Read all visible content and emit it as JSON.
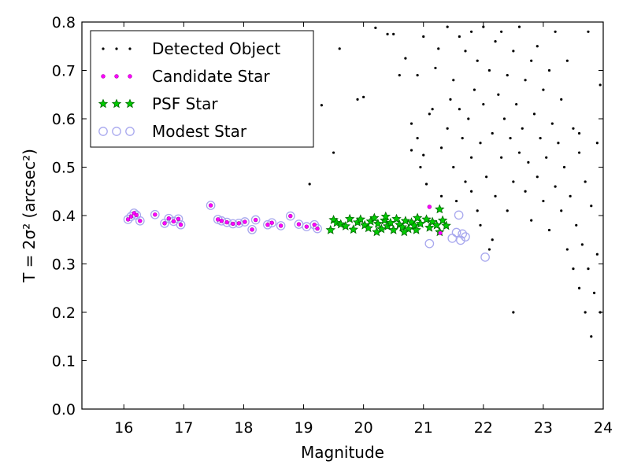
{
  "chart_data": {
    "type": "scatter",
    "xlabel": "Magnitude",
    "ylabel": "T = 2σ² (arcsec²)",
    "xlim": [
      15.3,
      24.0
    ],
    "ylim": [
      0.0,
      0.8
    ],
    "xticks": [
      "16",
      "17",
      "18",
      "19",
      "20",
      "21",
      "22",
      "23",
      "24"
    ],
    "yticks": [
      "0.0",
      "0.1",
      "0.2",
      "0.3",
      "0.4",
      "0.5",
      "0.6",
      "0.7",
      "0.8"
    ],
    "grid": false,
    "legend_position": "top-left",
    "legend": [
      {
        "label": "Detected Object",
        "marker": "dot",
        "color": "#000000"
      },
      {
        "label": "Candidate Star",
        "marker": "circle",
        "color": "#ff00ff"
      },
      {
        "label": "PSF Star",
        "marker": "star",
        "color": "#00aa00"
      },
      {
        "label": "Modest Star",
        "marker": "open-circle",
        "color": "#aaaaee"
      }
    ],
    "series": [
      {
        "name": "Modest Star",
        "points": [
          [
            16.07,
            0.392
          ],
          [
            16.12,
            0.398
          ],
          [
            16.17,
            0.405
          ],
          [
            16.21,
            0.401
          ],
          [
            16.27,
            0.389
          ],
          [
            16.52,
            0.402
          ],
          [
            16.68,
            0.384
          ],
          [
            16.75,
            0.394
          ],
          [
            16.83,
            0.388
          ],
          [
            16.91,
            0.393
          ],
          [
            16.95,
            0.381
          ],
          [
            17.45,
            0.421
          ],
          [
            17.57,
            0.392
          ],
          [
            17.63,
            0.389
          ],
          [
            17.72,
            0.386
          ],
          [
            17.82,
            0.383
          ],
          [
            17.92,
            0.384
          ],
          [
            18.02,
            0.387
          ],
          [
            18.14,
            0.371
          ],
          [
            18.2,
            0.391
          ],
          [
            18.4,
            0.381
          ],
          [
            18.47,
            0.385
          ],
          [
            18.62,
            0.379
          ],
          [
            18.78,
            0.399
          ],
          [
            18.92,
            0.382
          ],
          [
            19.05,
            0.377
          ],
          [
            19.18,
            0.381
          ],
          [
            19.23,
            0.373
          ],
          [
            21.48,
            0.353
          ],
          [
            21.55,
            0.365
          ],
          [
            21.62,
            0.349
          ],
          [
            21.65,
            0.362
          ],
          [
            21.7,
            0.356
          ],
          [
            21.1,
            0.342
          ],
          [
            22.03,
            0.314
          ],
          [
            21.59,
            0.401
          ]
        ]
      },
      {
        "name": "PSF Star",
        "points": [
          [
            19.45,
            0.37
          ],
          [
            19.5,
            0.391
          ],
          [
            19.55,
            0.385
          ],
          [
            19.62,
            0.382
          ],
          [
            19.7,
            0.378
          ],
          [
            19.77,
            0.393
          ],
          [
            19.83,
            0.371
          ],
          [
            19.9,
            0.386
          ],
          [
            19.95,
            0.392
          ],
          [
            20.02,
            0.38
          ],
          [
            20.08,
            0.374
          ],
          [
            20.12,
            0.388
          ],
          [
            20.18,
            0.395
          ],
          [
            20.24,
            0.383
          ],
          [
            20.3,
            0.372
          ],
          [
            20.35,
            0.39
          ],
          [
            20.4,
            0.378
          ],
          [
            20.45,
            0.385
          ],
          [
            20.5,
            0.37
          ],
          [
            20.55,
            0.393
          ],
          [
            20.6,
            0.381
          ],
          [
            20.65,
            0.376
          ],
          [
            20.7,
            0.389
          ],
          [
            20.75,
            0.372
          ],
          [
            20.8,
            0.386
          ],
          [
            20.85,
            0.379
          ],
          [
            20.9,
            0.395
          ],
          [
            20.95,
            0.383
          ],
          [
            21.05,
            0.392
          ],
          [
            21.1,
            0.375
          ],
          [
            21.15,
            0.387
          ],
          [
            21.22,
            0.38
          ],
          [
            21.27,
            0.366
          ],
          [
            21.32,
            0.39
          ],
          [
            21.38,
            0.379
          ],
          [
            21.27,
            0.413
          ],
          [
            20.22,
            0.366
          ],
          [
            20.68,
            0.366
          ],
          [
            20.37,
            0.398
          ],
          [
            20.88,
            0.37
          ]
        ]
      },
      {
        "name": "Candidate Star",
        "points": [
          [
            16.07,
            0.392
          ],
          [
            16.12,
            0.398
          ],
          [
            16.17,
            0.405
          ],
          [
            16.21,
            0.401
          ],
          [
            16.27,
            0.389
          ],
          [
            16.52,
            0.402
          ],
          [
            16.68,
            0.384
          ],
          [
            16.75,
            0.394
          ],
          [
            16.83,
            0.388
          ],
          [
            16.91,
            0.393
          ],
          [
            16.95,
            0.381
          ],
          [
            17.45,
            0.421
          ],
          [
            17.57,
            0.392
          ],
          [
            17.63,
            0.389
          ],
          [
            17.72,
            0.386
          ],
          [
            17.82,
            0.383
          ],
          [
            17.92,
            0.384
          ],
          [
            18.02,
            0.387
          ],
          [
            18.14,
            0.371
          ],
          [
            18.2,
            0.391
          ],
          [
            18.4,
            0.381
          ],
          [
            18.47,
            0.385
          ],
          [
            18.62,
            0.379
          ],
          [
            18.78,
            0.399
          ],
          [
            18.92,
            0.382
          ],
          [
            19.05,
            0.377
          ],
          [
            19.18,
            0.381
          ],
          [
            19.23,
            0.373
          ],
          [
            21.1,
            0.418
          ],
          [
            21.28,
            0.364
          ]
        ]
      },
      {
        "name": "Detected Object",
        "points": [
          [
            19.1,
            0.465
          ],
          [
            19.3,
            0.628
          ],
          [
            19.5,
            0.53
          ],
          [
            19.6,
            0.745
          ],
          [
            19.9,
            0.64
          ],
          [
            20.0,
            0.645
          ],
          [
            20.2,
            0.788
          ],
          [
            20.4,
            0.775
          ],
          [
            20.5,
            0.775
          ],
          [
            20.6,
            0.69
          ],
          [
            20.7,
            0.725
          ],
          [
            20.8,
            0.535
          ],
          [
            20.8,
            0.59
          ],
          [
            20.9,
            0.56
          ],
          [
            20.9,
            0.69
          ],
          [
            21.0,
            0.77
          ],
          [
            21.0,
            0.525
          ],
          [
            21.05,
            0.465
          ],
          [
            21.1,
            0.61
          ],
          [
            21.15,
            0.62
          ],
          [
            21.2,
            0.705
          ],
          [
            21.25,
            0.745
          ],
          [
            21.3,
            0.54
          ],
          [
            21.3,
            0.44
          ],
          [
            21.4,
            0.79
          ],
          [
            21.4,
            0.58
          ],
          [
            21.45,
            0.64
          ],
          [
            21.5,
            0.5
          ],
          [
            21.5,
            0.68
          ],
          [
            21.55,
            0.43
          ],
          [
            21.6,
            0.77
          ],
          [
            21.6,
            0.62
          ],
          [
            21.65,
            0.56
          ],
          [
            21.7,
            0.74
          ],
          [
            21.7,
            0.47
          ],
          [
            21.75,
            0.6
          ],
          [
            21.8,
            0.78
          ],
          [
            21.8,
            0.52
          ],
          [
            21.85,
            0.66
          ],
          [
            21.9,
            0.41
          ],
          [
            21.9,
            0.72
          ],
          [
            21.95,
            0.55
          ],
          [
            22.0,
            0.79
          ],
          [
            22.0,
            0.63
          ],
          [
            22.05,
            0.48
          ],
          [
            22.1,
            0.7
          ],
          [
            22.15,
            0.57
          ],
          [
            22.2,
            0.76
          ],
          [
            22.2,
            0.44
          ],
          [
            22.25,
            0.65
          ],
          [
            22.3,
            0.52
          ],
          [
            22.3,
            0.78
          ],
          [
            22.35,
            0.6
          ],
          [
            22.4,
            0.69
          ],
          [
            22.4,
            0.41
          ],
          [
            22.45,
            0.56
          ],
          [
            22.5,
            0.74
          ],
          [
            22.5,
            0.47
          ],
          [
            22.55,
            0.63
          ],
          [
            22.6,
            0.53
          ],
          [
            22.6,
            0.79
          ],
          [
            22.65,
            0.58
          ],
          [
            22.7,
            0.45
          ],
          [
            22.7,
            0.68
          ],
          [
            22.75,
            0.51
          ],
          [
            22.8,
            0.72
          ],
          [
            22.8,
            0.39
          ],
          [
            22.85,
            0.61
          ],
          [
            22.9,
            0.48
          ],
          [
            22.9,
            0.75
          ],
          [
            22.95,
            0.56
          ],
          [
            23.0,
            0.43
          ],
          [
            23.0,
            0.66
          ],
          [
            23.05,
            0.52
          ],
          [
            23.1,
            0.7
          ],
          [
            23.1,
            0.37
          ],
          [
            23.15,
            0.59
          ],
          [
            23.2,
            0.46
          ],
          [
            23.2,
            0.78
          ],
          [
            23.25,
            0.55
          ],
          [
            23.3,
            0.41
          ],
          [
            23.3,
            0.64
          ],
          [
            23.35,
            0.5
          ],
          [
            23.4,
            0.33
          ],
          [
            23.4,
            0.72
          ],
          [
            23.45,
            0.44
          ],
          [
            23.5,
            0.58
          ],
          [
            23.5,
            0.29
          ],
          [
            23.55,
            0.38
          ],
          [
            23.6,
            0.53
          ],
          [
            23.6,
            0.25
          ],
          [
            23.65,
            0.34
          ],
          [
            23.7,
            0.47
          ],
          [
            23.7,
            0.2
          ],
          [
            23.75,
            0.29
          ],
          [
            23.8,
            0.15
          ],
          [
            23.8,
            0.42
          ],
          [
            23.85,
            0.24
          ],
          [
            23.9,
            0.32
          ],
          [
            23.95,
            0.2
          ],
          [
            23.95,
            0.67
          ],
          [
            23.9,
            0.55
          ],
          [
            22.5,
            0.2
          ],
          [
            21.95,
            0.38
          ],
          [
            22.15,
            0.35
          ],
          [
            23.6,
            0.57
          ],
          [
            23.75,
            0.78
          ],
          [
            22.1,
            0.33
          ],
          [
            21.8,
            0.45
          ],
          [
            20.95,
            0.5
          ]
        ]
      }
    ]
  }
}
